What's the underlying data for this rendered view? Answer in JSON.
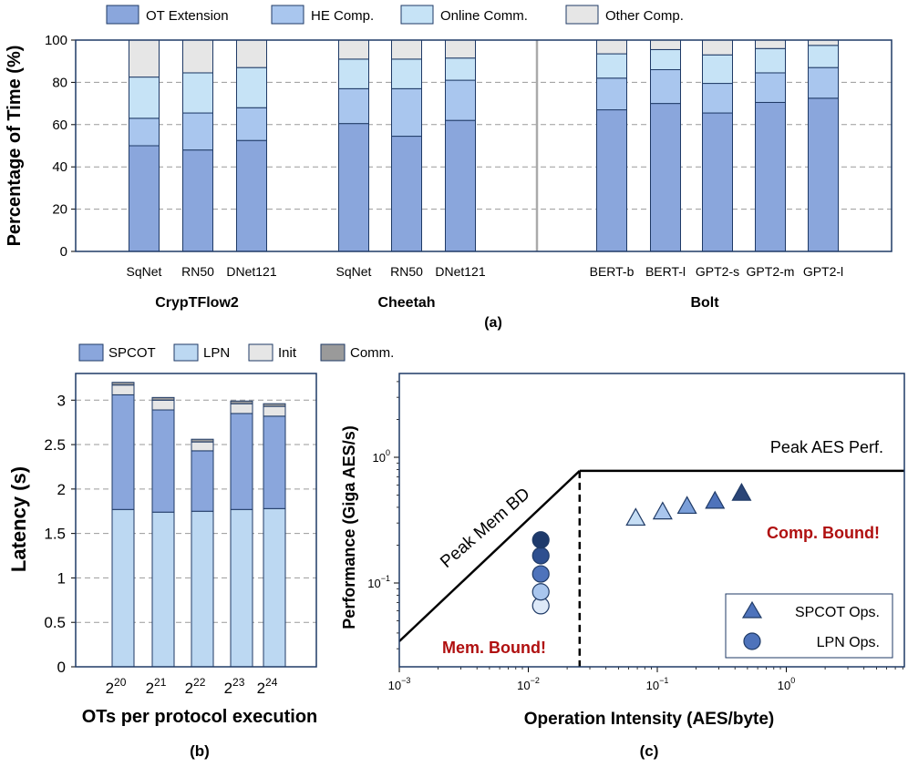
{
  "figure": {
    "panel_a_caption": "(a)",
    "panel_b_caption": "(b)",
    "panel_c_caption": "(c)"
  },
  "chart_data": [
    {
      "id": "a",
      "type": "bar",
      "stacked": true,
      "ylabel": "Percentage of Time (%)",
      "ylim": [
        0,
        100
      ],
      "yticks": [
        0,
        20,
        40,
        60,
        80,
        100
      ],
      "grid": true,
      "legend": [
        "OT Extension",
        "HE Comp.",
        "Online Comm.",
        "Other Comp."
      ],
      "groups": [
        {
          "name": "CrypTFlow2",
          "categories": [
            "SqNet",
            "RN50",
            "DNet121"
          ]
        },
        {
          "name": "Cheetah",
          "categories": [
            "SqNet",
            "RN50",
            "DNet121"
          ]
        },
        {
          "name": "Bolt",
          "categories": [
            "BERT-b",
            "BERT-l",
            "GPT2-s",
            "GPT2-m",
            "GPT2-l"
          ]
        }
      ],
      "series": [
        {
          "name": "OT Extension",
          "color": "#8aa6dc",
          "values": [
            50,
            48,
            52.5,
            60.5,
            54.5,
            62,
            67,
            70,
            65.5,
            70.5,
            72.5
          ]
        },
        {
          "name": "HE Comp.",
          "color": "#a9c6ee",
          "values": [
            13,
            17.5,
            15.5,
            16.5,
            22.5,
            19,
            15,
            16,
            14,
            14,
            14.5
          ]
        },
        {
          "name": "Online Comm.",
          "color": "#c6e3f6",
          "values": [
            19.5,
            19,
            19,
            14,
            14,
            10.5,
            11.5,
            9.5,
            13.5,
            11.5,
            10.5
          ]
        },
        {
          "name": "Other Comp.",
          "color": "#e6e6e6",
          "values": [
            17.5,
            15.5,
            13,
            9,
            9,
            8.5,
            6.5,
            4.5,
            7,
            4,
            2.5
          ]
        }
      ]
    },
    {
      "id": "b",
      "type": "bar",
      "stacked": true,
      "xlabel": "OTs per protocol execution",
      "ylabel": "Latency (s)",
      "ylim": [
        0,
        3.3
      ],
      "yticks": [
        "0",
        "0.5",
        "1",
        "1.5",
        "2",
        "2.5",
        "3"
      ],
      "categories_base": [
        "2",
        "2",
        "2",
        "2",
        "2"
      ],
      "categories_exp": [
        "20",
        "21",
        "22",
        "23",
        "24"
      ],
      "legend": [
        "SPCOT",
        "LPN",
        "Init",
        "Comm."
      ],
      "series": [
        {
          "name": "LPN",
          "color": "#bcd8f2",
          "values": [
            1.77,
            1.74,
            1.75,
            1.77,
            1.78
          ]
        },
        {
          "name": "SPCOT",
          "color": "#8aa6dc",
          "values": [
            1.29,
            1.15,
            0.68,
            1.08,
            1.04
          ]
        },
        {
          "name": "Init",
          "color": "#e6e6e6",
          "values": [
            0.11,
            0.11,
            0.1,
            0.11,
            0.11
          ]
        },
        {
          "name": "Comm.",
          "color": "#9a9a9a",
          "values": [
            0.03,
            0.03,
            0.03,
            0.03,
            0.03
          ]
        }
      ]
    },
    {
      "id": "c",
      "type": "scatter",
      "subtype": "roofline",
      "xscale": "log",
      "yscale": "log",
      "xlabel": "Operation Intensity (AES/byte)",
      "ylabel": "Performance (Giga AES/s)",
      "xlim": [
        0.001,
        10
      ],
      "ylim": [
        0.02,
        5
      ],
      "xticks": [
        {
          "base": "10",
          "exp": "−3"
        },
        {
          "base": "10",
          "exp": "−2"
        },
        {
          "base": "10",
          "exp": "−1"
        },
        {
          "base": "10",
          "exp": "0"
        }
      ],
      "yticks": [
        {
          "base": "10",
          "exp": "−1"
        },
        {
          "base": "10",
          "exp": "0"
        }
      ],
      "roof_peak": 0.78,
      "ridge_x": 0.025,
      "roof_labels": {
        "mem": "Peak Mem BD",
        "comp": "Peak AES Perf."
      },
      "region_labels": {
        "mem": "Mem. Bound!",
        "comp": "Comp. Bound!"
      },
      "legend": [
        "SPCOT Ops.",
        "LPN Ops."
      ],
      "series": [
        {
          "name": "SPCOT Ops.",
          "marker": "triangle",
          "x": [
            0.068,
            0.11,
            0.17,
            0.28,
            0.45
          ],
          "y": [
            0.33,
            0.37,
            0.41,
            0.45,
            0.52
          ],
          "colors": [
            "#c6def5",
            "#a9c6ee",
            "#7b9fd9",
            "#4e73bb",
            "#2a4577"
          ]
        },
        {
          "name": "LPN Ops.",
          "marker": "circle",
          "x": [
            0.0125,
            0.0125,
            0.0125,
            0.0125,
            0.0125
          ],
          "y": [
            0.066,
            0.085,
            0.118,
            0.165,
            0.22
          ],
          "colors": [
            "#dde9f8",
            "#a9c6ee",
            "#4e73bb",
            "#2e4f8f",
            "#1e3a6c"
          ]
        }
      ]
    }
  ]
}
